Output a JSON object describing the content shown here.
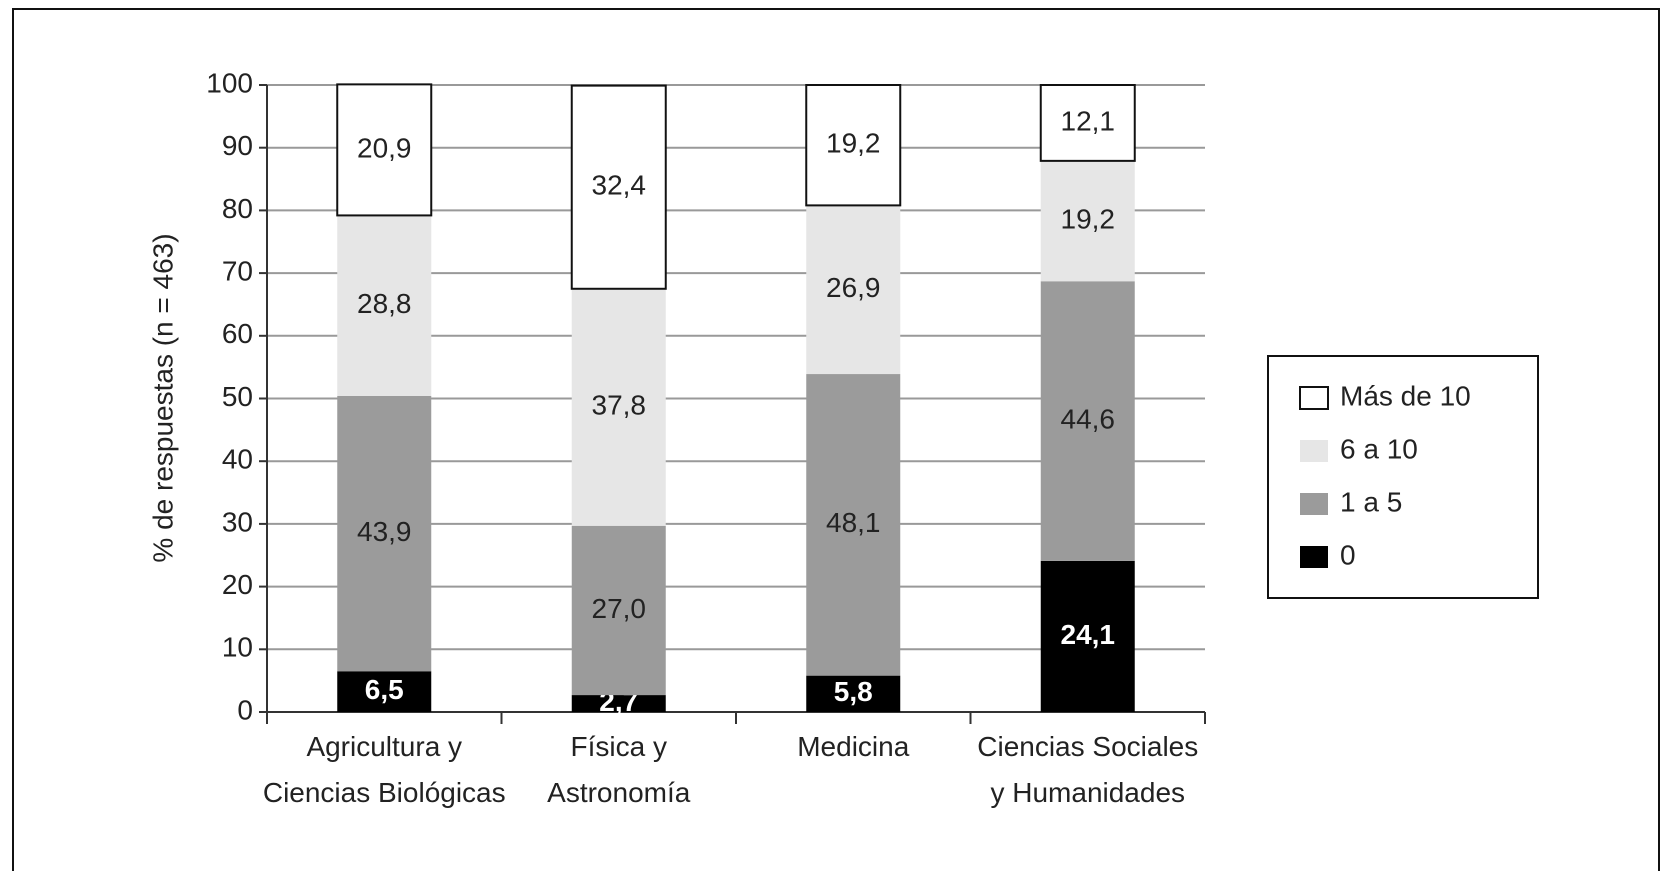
{
  "chart_data": {
    "type": "stacked_bar",
    "y_label": "% de respuestas (n = 463)",
    "categories": [
      "Agricultura y\nCiencias Biológicas",
      "Física y\nAstronomía",
      "Medicina",
      "Ciencias Sociales\ny Humanidades"
    ],
    "series": [
      {
        "name": "0",
        "color": "#000000",
        "values": [
          6.5,
          2.7,
          5.8,
          24.1
        ],
        "value_labels": [
          "6,5",
          "2,7",
          "5,8",
          "24,1"
        ]
      },
      {
        "name": "1 a 5",
        "color": "#9b9b9b",
        "values": [
          43.9,
          27.0,
          48.1,
          44.6
        ],
        "value_labels": [
          "43,9",
          "27,0",
          "48,1",
          "44,6"
        ]
      },
      {
        "name": "6 a 10",
        "color": "#e6e6e6",
        "values": [
          28.8,
          37.8,
          26.9,
          19.2
        ],
        "value_labels": [
          "28,8",
          "37,8",
          "26,9",
          "19,2"
        ]
      },
      {
        "name": "Más de 10",
        "color": "#ffffff",
        "values": [
          20.9,
          32.4,
          19.2,
          12.1
        ],
        "value_labels": [
          "20,9",
          "32,4",
          "19,2",
          "12,1"
        ]
      }
    ],
    "ylim": [
      0,
      100
    ],
    "yticks": [
      0,
      10,
      20,
      30,
      40,
      50,
      60,
      70,
      80,
      90,
      100
    ],
    "grid": true,
    "legend": "right"
  }
}
